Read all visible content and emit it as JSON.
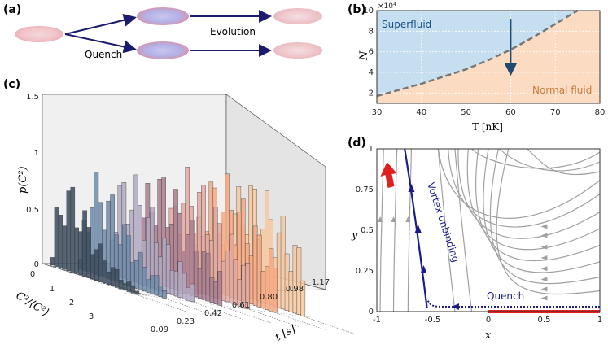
{
  "panel_a": {
    "label": "(a)",
    "quench_label": "Quench",
    "evolution_label": "Evolution"
  },
  "panel_b": {
    "label": "(b)",
    "chart_data": {
      "type": "area",
      "region_labels": [
        "Superfluid",
        "Normal fluid"
      ],
      "xlabel": "T [nK]",
      "ylabel": "N",
      "y_multiplier": "×10⁴",
      "xlim": [
        30,
        80
      ],
      "ylim": [
        1,
        10
      ],
      "x_ticks": [
        "30",
        "40",
        "50",
        "60",
        "70",
        "80"
      ],
      "y_ticks": [
        "2",
        "4",
        "6",
        "8",
        "10"
      ],
      "boundary_x": [
        30,
        35,
        40,
        45,
        50,
        55,
        60,
        65,
        70,
        75
      ],
      "boundary_y": [
        1.7,
        2.3,
        2.9,
        3.6,
        4.3,
        5.2,
        6.2,
        7.4,
        8.7,
        10.1
      ],
      "arrow_from": [
        60,
        9.2
      ],
      "arrow_to": [
        60,
        4.3
      ],
      "colors": {
        "superfluid": "#c6dff0",
        "normal": "#fbdcc3",
        "boundary": "#777777",
        "arrow": "#1d4a6e"
      }
    }
  },
  "panel_c": {
    "label": "(c)",
    "chart_data": {
      "type": "bar",
      "zlabel": "p(C²)",
      "xlabel": "C²/⟨C²⟩",
      "tlabel": "t [s]",
      "z_ticks": [
        "0",
        "0.5",
        "1",
        "1.5"
      ],
      "x_ticks": [
        "0",
        "1",
        "2",
        "3"
      ],
      "t_ticks": [
        "0.09",
        "0.23",
        "0.42",
        "0.61",
        "0.80",
        "0.98",
        "1.17"
      ],
      "series_colors": [
        "#3a4a5c",
        "#6d89a8",
        "#b1a9c2",
        "#aa7d8e",
        "#e0a8a0",
        "#f5a883",
        "#f8c8a0"
      ]
    }
  },
  "panel_d": {
    "label": "(d)",
    "chart_data": {
      "type": "line",
      "xlabel": "x",
      "ylabel": "y",
      "xlim": [
        -1,
        1
      ],
      "ylim": [
        0,
        1
      ],
      "x_ticks": [
        "-1",
        "-0.5",
        "0",
        "0.5",
        "1"
      ],
      "y_ticks": [
        "0",
        "0.25",
        "0.5",
        "0.75",
        "1"
      ],
      "annotations": [
        "Vortex unbinding",
        "Quench"
      ],
      "colors": {
        "streamline": "#a0a0a0",
        "trajectory": "#1b1b8a",
        "red": "#e02020"
      }
    }
  }
}
